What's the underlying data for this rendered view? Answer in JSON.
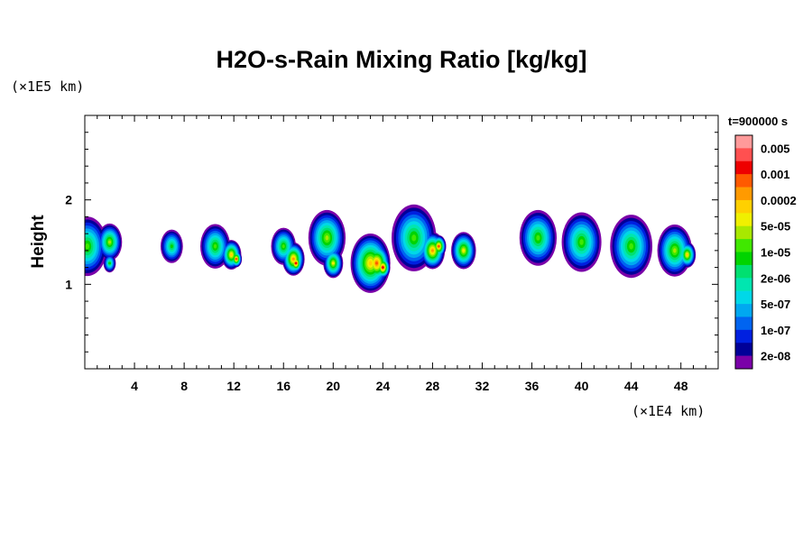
{
  "chart_data": {
    "type": "heatmap",
    "title": "H2O-s-Rain Mixing Ratio [kg/kg]",
    "ylabel": "Height",
    "x_scale_note": "(×1E4 km)",
    "y_scale_note": "(×1E5 km)",
    "time_label": "t=900000 s",
    "xlim": [
      0,
      51
    ],
    "ylim": [
      0,
      3
    ],
    "x_ticks": [
      4,
      8,
      12,
      16,
      20,
      24,
      28,
      32,
      36,
      40,
      44,
      48
    ],
    "x_tick_labels": [
      "4",
      "8",
      "12",
      "16",
      "20",
      "24",
      "28",
      "32",
      "36",
      "40",
      "44",
      "48"
    ],
    "y_ticks": [
      1,
      2
    ],
    "y_tick_labels": [
      "1",
      "2"
    ],
    "colorbar": {
      "levels": [
        "0.005",
        "0.001",
        "0.0002",
        "5e-05",
        "1e-05",
        "2e-06",
        "5e-07",
        "1e-07",
        "2e-08"
      ],
      "colors_top_to_bottom": [
        "#ff9a9a",
        "#ff5050",
        "#ee0000",
        "#ff5a00",
        "#ff9a00",
        "#ffd000",
        "#f0f000",
        "#a8e800",
        "#40e800",
        "#00d400",
        "#00e070",
        "#00e6b0",
        "#00d8e8",
        "#00a8f0",
        "#0064f0",
        "#0020e0",
        "#000098",
        "#7a00a8"
      ]
    },
    "field_note": "Rain mixing ratio field concentrated in a band at heights ~1.0–1.9 (×1E5 km); peak values ~0.001–0.005 kg/kg near x≈23–24 (×1E4 km), secondary maxima near x≈12, 17, 28.",
    "cells": [
      {
        "x": 0.2,
        "y": 1.45,
        "r": 1.6,
        "level": 8
      },
      {
        "x": 2.0,
        "y": 1.5,
        "r": 1.0,
        "level": 7
      },
      {
        "x": 2.0,
        "y": 1.25,
        "r": 0.5,
        "level": 9
      },
      {
        "x": 7.0,
        "y": 1.45,
        "r": 0.9,
        "level": 9
      },
      {
        "x": 10.5,
        "y": 1.45,
        "r": 1.2,
        "level": 8
      },
      {
        "x": 11.8,
        "y": 1.35,
        "r": 0.8,
        "level": 5
      },
      {
        "x": 12.2,
        "y": 1.3,
        "r": 0.45,
        "level": 3
      },
      {
        "x": 16.0,
        "y": 1.45,
        "r": 1.0,
        "level": 8
      },
      {
        "x": 16.8,
        "y": 1.3,
        "r": 0.9,
        "level": 4
      },
      {
        "x": 17.0,
        "y": 1.25,
        "r": 0.5,
        "level": 2
      },
      {
        "x": 19.5,
        "y": 1.55,
        "r": 1.5,
        "level": 7
      },
      {
        "x": 20.0,
        "y": 1.25,
        "r": 0.8,
        "level": 6
      },
      {
        "x": 23.0,
        "y": 1.25,
        "r": 1.6,
        "level": 5
      },
      {
        "x": 23.5,
        "y": 1.25,
        "r": 1.1,
        "level": 3
      },
      {
        "x": 24.0,
        "y": 1.2,
        "r": 0.6,
        "level": 2
      },
      {
        "x": 26.5,
        "y": 1.55,
        "r": 1.8,
        "level": 8
      },
      {
        "x": 28.0,
        "y": 1.4,
        "r": 1.0,
        "level": 4
      },
      {
        "x": 28.5,
        "y": 1.45,
        "r": 0.6,
        "level": 3
      },
      {
        "x": 30.5,
        "y": 1.4,
        "r": 1.0,
        "level": 6
      },
      {
        "x": 36.5,
        "y": 1.55,
        "r": 1.5,
        "level": 8
      },
      {
        "x": 40.0,
        "y": 1.5,
        "r": 1.6,
        "level": 8
      },
      {
        "x": 44.0,
        "y": 1.45,
        "r": 1.7,
        "level": 8
      },
      {
        "x": 47.5,
        "y": 1.4,
        "r": 1.4,
        "level": 7
      },
      {
        "x": 48.5,
        "y": 1.35,
        "r": 0.7,
        "level": 5
      }
    ]
  }
}
